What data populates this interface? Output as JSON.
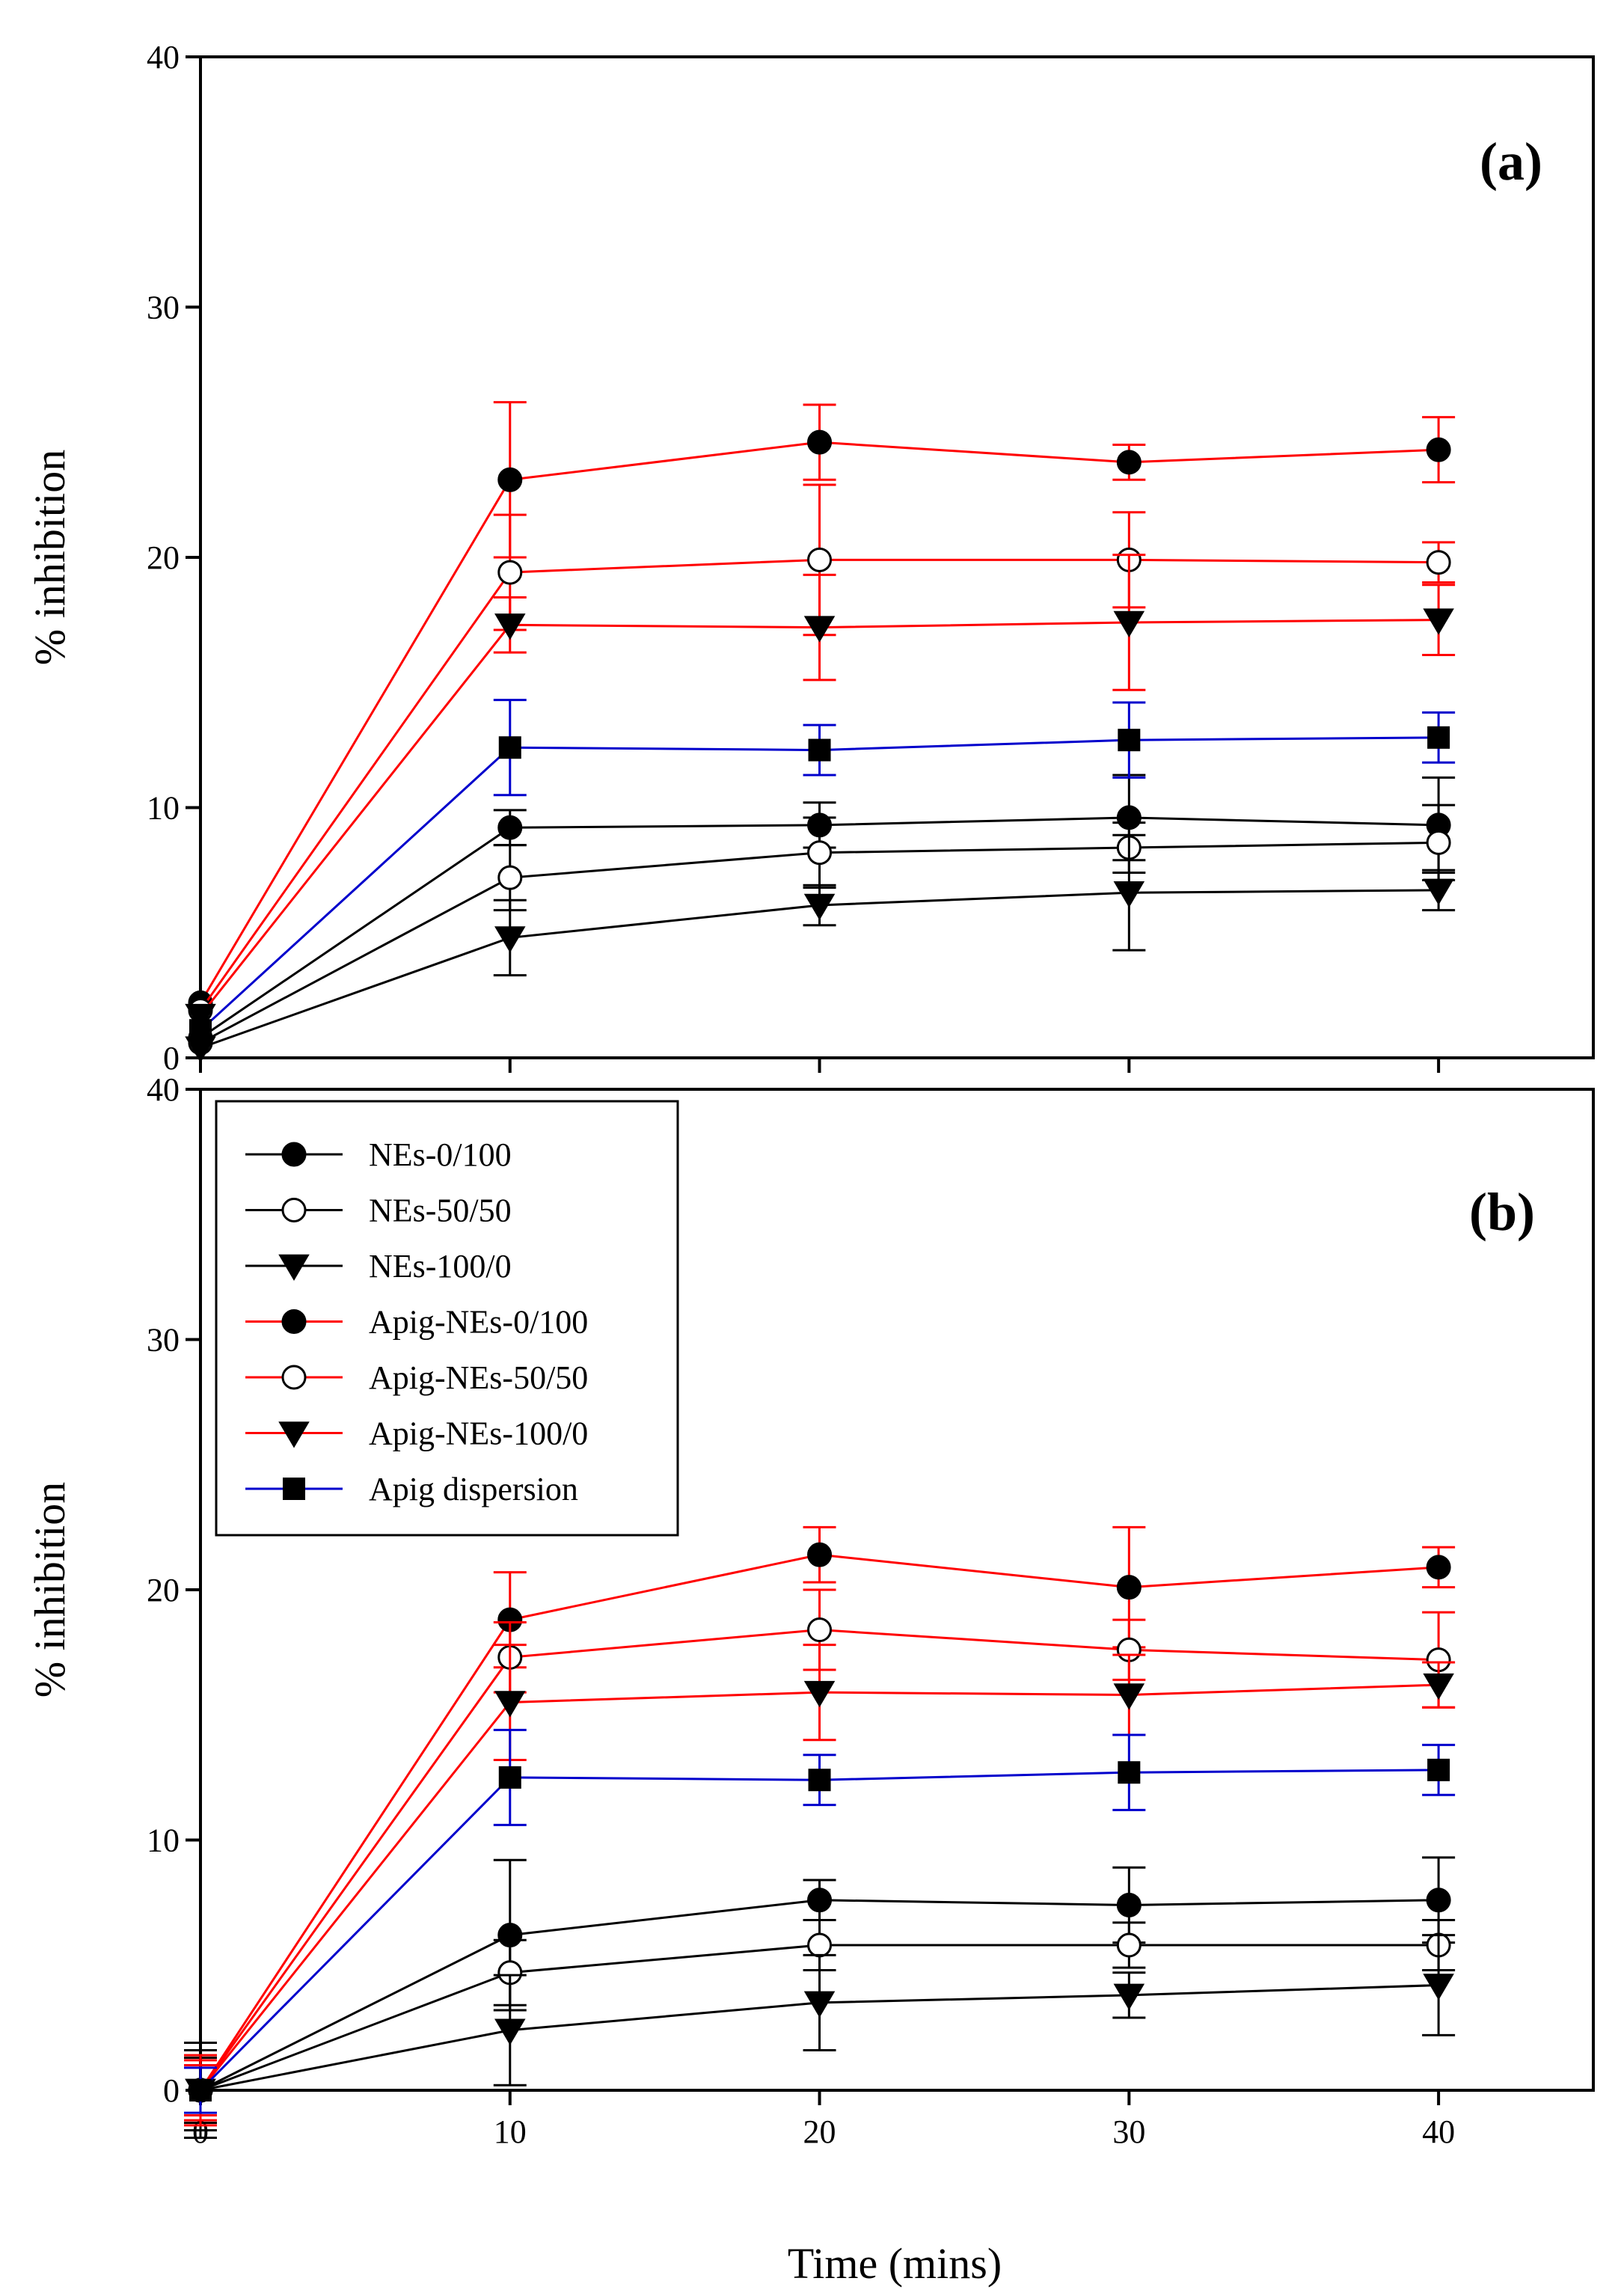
{
  "figure": {
    "xlabel": "Time (mins)",
    "colors": {
      "black": "#000000",
      "red": "#ff0000",
      "blue": "#0000cc"
    }
  },
  "legend": {
    "entries": [
      {
        "label": "NEs-0/100",
        "color": "#000000",
        "marker": "filled-circle"
      },
      {
        "label": "NEs-50/50",
        "color": "#000000",
        "marker": "open-circle"
      },
      {
        "label": "NEs-100/0",
        "color": "#000000",
        "marker": "filled-triangle-down"
      },
      {
        "label": "Apig-NEs-0/100",
        "color": "#ff0000",
        "marker": "filled-circle"
      },
      {
        "label": "Apig-NEs-50/50",
        "color": "#ff0000",
        "marker": "open-circle"
      },
      {
        "label": "Apig-NEs-100/0",
        "color": "#ff0000",
        "marker": "filled-triangle-down"
      },
      {
        "label": "Apig dispersion",
        "color": "#0000cc",
        "marker": "filled-square"
      }
    ]
  },
  "chart_data": [
    {
      "type": "line",
      "panel": "(a)",
      "ylabel": "% inhibition",
      "xlim": [
        0,
        45
      ],
      "ylim": [
        0,
        40
      ],
      "xticks": [
        0,
        10,
        20,
        30,
        40
      ],
      "yticks": [
        0,
        10,
        20,
        30,
        40
      ],
      "x": [
        0,
        10,
        20,
        30,
        40
      ],
      "series": [
        {
          "name": "NEs-0/100",
          "color": "#000000",
          "marker": "filled-circle",
          "values": [
            0.8,
            9.2,
            9.3,
            9.6,
            9.3
          ],
          "errors": [
            0,
            0.7,
            0.9,
            1.7,
            1.9
          ]
        },
        {
          "name": "NEs-50/50",
          "color": "#000000",
          "marker": "open-circle",
          "values": [
            0.6,
            7.2,
            8.2,
            8.4,
            8.6
          ],
          "errors": [
            0,
            1.3,
            1.4,
            1.0,
            1.5
          ]
        },
        {
          "name": "NEs-100/0",
          "color": "#000000",
          "marker": "filled-triangle-down",
          "values": [
            0.4,
            4.8,
            6.1,
            6.6,
            6.7
          ],
          "errors": [
            0,
            1.5,
            0.8,
            2.3,
            0.8
          ]
        },
        {
          "name": "Apig-NEs-0/100",
          "color": "#ff0000",
          "marker": "filled-circle",
          "values": [
            2.2,
            23.1,
            24.6,
            23.8,
            24.3
          ],
          "errors": [
            0,
            3.1,
            1.5,
            0.7,
            1.3
          ]
        },
        {
          "name": "Apig-NEs-50/50",
          "color": "#ff0000",
          "marker": "open-circle",
          "values": [
            1.9,
            19.4,
            19.9,
            19.9,
            19.8
          ],
          "errors": [
            0,
            2.3,
            3.0,
            1.9,
            0.8
          ]
        },
        {
          "name": "Apig-NEs-100/0",
          "color": "#ff0000",
          "marker": "filled-triangle-down",
          "values": [
            1.7,
            17.3,
            17.2,
            17.4,
            17.5
          ],
          "errors": [
            0,
            1.1,
            2.1,
            2.7,
            1.4
          ]
        },
        {
          "name": "Apig dispersion",
          "color": "#0000cc",
          "marker": "filled-square",
          "values": [
            1.1,
            12.4,
            12.3,
            12.7,
            12.8
          ],
          "errors": [
            0,
            1.9,
            1.0,
            1.5,
            1.0
          ]
        }
      ]
    },
    {
      "type": "line",
      "panel": "(b)",
      "ylabel": "% inhibition",
      "xlim": [
        0,
        45
      ],
      "ylim": [
        0,
        40
      ],
      "xticks": [
        0,
        10,
        20,
        30,
        40
      ],
      "yticks": [
        0,
        10,
        20,
        30,
        40
      ],
      "x": [
        0,
        10,
        20,
        30,
        40
      ],
      "series": [
        {
          "name": "NEs-0/100",
          "color": "#000000",
          "marker": "filled-circle",
          "values": [
            0,
            6.2,
            7.6,
            7.4,
            7.6
          ],
          "errors": [
            1.9,
            3.0,
            0.8,
            1.5,
            1.7
          ]
        },
        {
          "name": "NEs-50/50",
          "color": "#000000",
          "marker": "open-circle",
          "values": [
            0,
            4.7,
            5.8,
            5.8,
            5.8
          ],
          "errors": [
            1.6,
            1.3,
            1.0,
            0.9,
            1.0
          ]
        },
        {
          "name": "NEs-100/0",
          "color": "#000000",
          "marker": "filled-triangle-down",
          "values": [
            0,
            2.4,
            3.5,
            3.8,
            4.2
          ],
          "errors": [
            1.3,
            2.2,
            1.9,
            0.9,
            2.0
          ]
        },
        {
          "name": "Apig-NEs-0/100",
          "color": "#ff0000",
          "marker": "filled-circle",
          "values": [
            0,
            18.8,
            21.4,
            20.1,
            20.9
          ],
          "errors": [
            1.4,
            1.9,
            1.1,
            2.4,
            0.8
          ]
        },
        {
          "name": "Apig-NEs-50/50",
          "color": "#ff0000",
          "marker": "open-circle",
          "values": [
            0,
            17.3,
            18.4,
            17.6,
            17.2
          ],
          "errors": [
            1.2,
            1.4,
            1.6,
            1.2,
            1.9
          ]
        },
        {
          "name": "Apig-NEs-100/0",
          "color": "#ff0000",
          "marker": "filled-triangle-down",
          "values": [
            0,
            15.5,
            15.9,
            15.8,
            16.2
          ],
          "errors": [
            1.0,
            2.3,
            1.9,
            1.6,
            0.9
          ]
        },
        {
          "name": "Apig dispersion",
          "color": "#0000cc",
          "marker": "filled-square",
          "values": [
            0,
            12.5,
            12.4,
            12.7,
            12.8
          ],
          "errors": [
            0.9,
            1.9,
            1.0,
            1.5,
            1.0
          ]
        }
      ]
    }
  ]
}
